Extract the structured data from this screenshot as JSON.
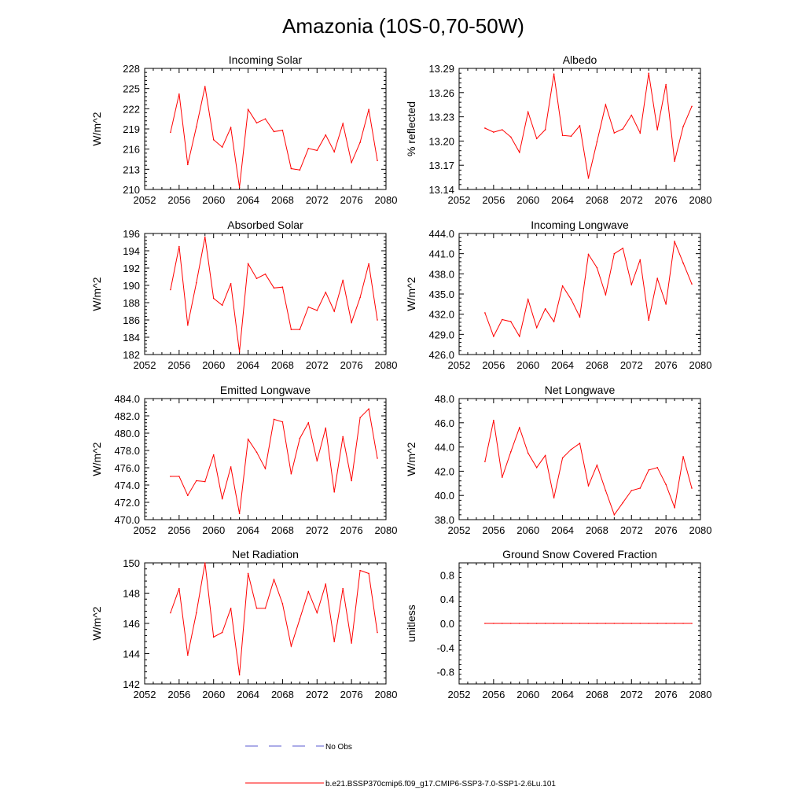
{
  "figure": {
    "title": "Amazonia (10S-0,70-50W)",
    "legend": [
      {
        "label": "No Obs",
        "color": "#5a5ad0",
        "style": "dashed"
      },
      {
        "label": "b.e21.BSSP370cmip6.f09_g17.CMIP6-SSP3-7.0-SSP1-2.6Lu.101",
        "color": "#ff0000",
        "style": "solid"
      }
    ]
  },
  "chart_data": [
    {
      "type": "line",
      "title": "Incoming Solar",
      "ylabel": "W/m^2",
      "xlabel": "",
      "xlim": [
        2052,
        2080
      ],
      "ylim": [
        210,
        228
      ],
      "xticks": [
        "2052",
        "2056",
        "2060",
        "2064",
        "2068",
        "2072",
        "2076",
        "2080"
      ],
      "yticks": [
        "210",
        "213",
        "216",
        "219",
        "222",
        "225",
        "228"
      ],
      "x": [
        2055,
        2056,
        2057,
        2058,
        2059,
        2060,
        2061,
        2062,
        2063,
        2064,
        2065,
        2066,
        2067,
        2068,
        2069,
        2070,
        2071,
        2072,
        2073,
        2074,
        2075,
        2076,
        2077,
        2078,
        2079
      ],
      "series": [
        {
          "values": [
            218.5,
            224.2,
            213.7,
            219.3,
            225.3,
            217.4,
            216.3,
            219.2,
            210.3,
            221.9,
            219.9,
            220.5,
            218.6,
            218.8,
            213.1,
            212.9,
            216.1,
            215.8,
            218.1,
            215.6,
            219.8,
            214.0,
            217.0,
            221.9,
            214.3
          ]
        }
      ]
    },
    {
      "type": "line",
      "title": "Albedo",
      "ylabel": "% reflected",
      "xlabel": "",
      "xlim": [
        2052,
        2080
      ],
      "ylim": [
        13.14,
        13.29
      ],
      "xticks": [
        "2052",
        "2056",
        "2060",
        "2064",
        "2068",
        "2072",
        "2076",
        "2080"
      ],
      "yticks": [
        "13.14",
        "13.17",
        "13.20",
        "13.23",
        "13.26",
        "13.29"
      ],
      "x": [
        2055,
        2056,
        2057,
        2058,
        2059,
        2060,
        2061,
        2062,
        2063,
        2064,
        2065,
        2066,
        2067,
        2068,
        2069,
        2070,
        2071,
        2072,
        2073,
        2074,
        2075,
        2076,
        2077,
        2078,
        2079
      ],
      "series": [
        {
          "values": [
            13.216,
            13.211,
            13.214,
            13.205,
            13.186,
            13.236,
            13.203,
            13.214,
            13.283,
            13.207,
            13.206,
            13.219,
            13.154,
            13.199,
            13.245,
            13.21,
            13.215,
            13.232,
            13.21,
            13.284,
            13.214,
            13.27,
            13.175,
            13.218,
            13.243
          ]
        }
      ]
    },
    {
      "type": "line",
      "title": "Absorbed Solar",
      "ylabel": "W/m^2",
      "xlabel": "",
      "xlim": [
        2052,
        2080
      ],
      "ylim": [
        182,
        196
      ],
      "xticks": [
        "2052",
        "2056",
        "2060",
        "2064",
        "2068",
        "2072",
        "2076",
        "2080"
      ],
      "yticks": [
        "182",
        "184",
        "186",
        "188",
        "190",
        "192",
        "194",
        "196"
      ],
      "x": [
        2055,
        2056,
        2057,
        2058,
        2059,
        2060,
        2061,
        2062,
        2063,
        2064,
        2065,
        2066,
        2067,
        2068,
        2069,
        2070,
        2071,
        2072,
        2073,
        2074,
        2075,
        2076,
        2077,
        2078,
        2079
      ],
      "series": [
        {
          "values": [
            189.5,
            194.5,
            185.4,
            190.3,
            195.6,
            188.5,
            187.7,
            190.2,
            182.3,
            192.5,
            190.8,
            191.3,
            189.7,
            189.8,
            184.9,
            184.9,
            187.5,
            187.1,
            189.2,
            187.0,
            190.6,
            185.7,
            188.6,
            192.5,
            186.0
          ]
        }
      ]
    },
    {
      "type": "line",
      "title": "Incoming Longwave",
      "ylabel": "W/m^2",
      "xlabel": "",
      "xlim": [
        2052,
        2080
      ],
      "ylim": [
        426.0,
        444.0
      ],
      "xticks": [
        "2052",
        "2056",
        "2060",
        "2064",
        "2068",
        "2072",
        "2076",
        "2080"
      ],
      "yticks": [
        "426.0",
        "429.0",
        "432.0",
        "435.0",
        "438.0",
        "441.0",
        "444.0"
      ],
      "x": [
        2055,
        2056,
        2057,
        2058,
        2059,
        2060,
        2061,
        2062,
        2063,
        2064,
        2065,
        2066,
        2067,
        2068,
        2069,
        2070,
        2071,
        2072,
        2073,
        2074,
        2075,
        2076,
        2077,
        2078,
        2079
      ],
      "series": [
        {
          "values": [
            432.2,
            428.7,
            431.2,
            430.9,
            428.7,
            434.2,
            430.0,
            432.8,
            430.9,
            436.2,
            434.2,
            431.6,
            440.9,
            438.9,
            434.9,
            441.0,
            441.8,
            436.4,
            440.1,
            431.1,
            437.3,
            433.5,
            442.8,
            439.6,
            436.5
          ]
        }
      ]
    },
    {
      "type": "line",
      "title": "Emitted Longwave",
      "ylabel": "W/m^2",
      "xlabel": "",
      "xlim": [
        2052,
        2080
      ],
      "ylim": [
        470.0,
        484.0
      ],
      "xticks": [
        "2052",
        "2056",
        "2060",
        "2064",
        "2068",
        "2072",
        "2076",
        "2080"
      ],
      "yticks": [
        "470.0",
        "472.0",
        "474.0",
        "476.0",
        "478.0",
        "480.0",
        "482.0",
        "484.0"
      ],
      "x": [
        2055,
        2056,
        2057,
        2058,
        2059,
        2060,
        2061,
        2062,
        2063,
        2064,
        2065,
        2066,
        2067,
        2068,
        2069,
        2070,
        2071,
        2072,
        2073,
        2074,
        2075,
        2076,
        2077,
        2078,
        2079
      ],
      "series": [
        {
          "values": [
            475.0,
            475.0,
            472.8,
            474.5,
            474.4,
            477.5,
            472.4,
            476.1,
            470.7,
            479.3,
            477.8,
            475.9,
            481.6,
            481.3,
            475.3,
            479.4,
            481.2,
            476.8,
            480.6,
            473.2,
            479.6,
            474.5,
            481.8,
            482.8,
            477.1
          ]
        }
      ]
    },
    {
      "type": "line",
      "title": "Net Longwave",
      "ylabel": "W/m^2",
      "xlabel": "",
      "xlim": [
        2052,
        2080
      ],
      "ylim": [
        38.0,
        48.0
      ],
      "xticks": [
        "2052",
        "2056",
        "2060",
        "2064",
        "2068",
        "2072",
        "2076",
        "2080"
      ],
      "yticks": [
        "38.0",
        "40.0",
        "42.0",
        "44.0",
        "46.0",
        "48.0"
      ],
      "x": [
        2055,
        2056,
        2057,
        2058,
        2059,
        2060,
        2061,
        2062,
        2063,
        2064,
        2065,
        2066,
        2067,
        2068,
        2069,
        2070,
        2071,
        2072,
        2073,
        2074,
        2075,
        2076,
        2077,
        2078,
        2079
      ],
      "series": [
        {
          "values": [
            42.8,
            46.2,
            41.5,
            43.6,
            45.6,
            43.5,
            42.3,
            43.3,
            39.8,
            43.1,
            43.8,
            44.3,
            40.8,
            42.5,
            40.4,
            38.4,
            39.4,
            40.4,
            40.6,
            42.1,
            42.3,
            40.9,
            39.0,
            43.2,
            40.6
          ]
        }
      ]
    },
    {
      "type": "line",
      "title": "Net Radiation",
      "ylabel": "W/m^2",
      "xlabel": "",
      "xlim": [
        2052,
        2080
      ],
      "ylim": [
        142,
        150
      ],
      "xticks": [
        "2052",
        "2056",
        "2060",
        "2064",
        "2068",
        "2072",
        "2076",
        "2080"
      ],
      "yticks": [
        "142",
        "144",
        "146",
        "148",
        "150"
      ],
      "x": [
        2055,
        2056,
        2057,
        2058,
        2059,
        2060,
        2061,
        2062,
        2063,
        2064,
        2065,
        2066,
        2067,
        2068,
        2069,
        2070,
        2071,
        2072,
        2073,
        2074,
        2075,
        2076,
        2077,
        2078,
        2079
      ],
      "series": [
        {
          "values": [
            146.7,
            148.3,
            143.9,
            146.7,
            150.0,
            145.1,
            145.4,
            147.0,
            142.6,
            149.3,
            147.0,
            147.0,
            148.9,
            147.3,
            144.5,
            146.3,
            148.1,
            146.7,
            148.6,
            144.8,
            148.3,
            144.7,
            149.5,
            149.3,
            145.4
          ]
        }
      ]
    },
    {
      "type": "line",
      "title": "Ground Snow Covered Fraction",
      "ylabel": "unitless",
      "xlabel": "",
      "xlim": [
        2052,
        2080
      ],
      "ylim": [
        -1.0,
        1.0
      ],
      "xticks": [
        "2052",
        "2056",
        "2060",
        "2064",
        "2068",
        "2072",
        "2076",
        "2080"
      ],
      "yticks": [
        "-0.8",
        "-0.4",
        "0.0",
        "0.4",
        "0.8"
      ],
      "ytick_values": [
        -0.8,
        -0.4,
        0.0,
        0.4,
        0.8
      ],
      "x": [
        2055,
        2056,
        2057,
        2058,
        2059,
        2060,
        2061,
        2062,
        2063,
        2064,
        2065,
        2066,
        2067,
        2068,
        2069,
        2070,
        2071,
        2072,
        2073,
        2074,
        2075,
        2076,
        2077,
        2078,
        2079
      ],
      "series": [
        {
          "values": [
            0,
            0,
            0,
            0,
            0,
            0,
            0,
            0,
            0,
            0,
            0,
            0,
            0,
            0,
            0,
            0,
            0,
            0,
            0,
            0,
            0,
            0,
            0,
            0,
            0
          ]
        }
      ]
    }
  ]
}
